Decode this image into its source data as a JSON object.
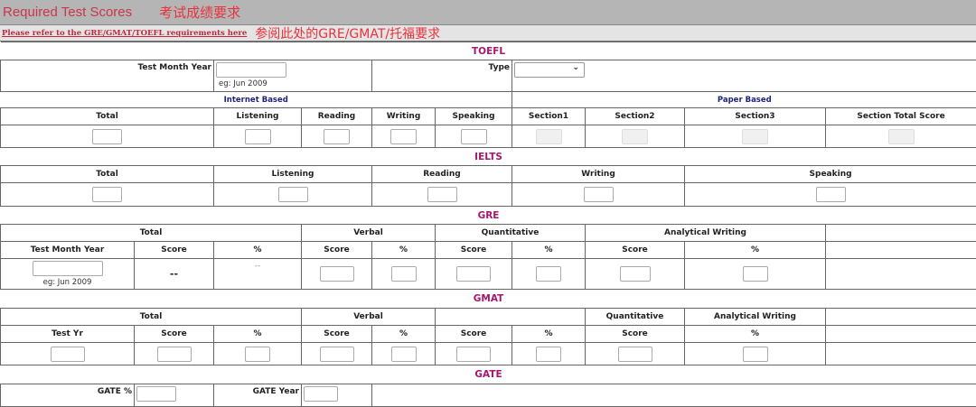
{
  "header": {
    "title": "Required Test Scores",
    "title_cn": "考试成绩要求"
  },
  "link": {
    "text": "Please refer to the GRE/GMAT/TOEFL requirements here",
    "note_cn": "参阅此处的GRE/GMAT/托福要求"
  },
  "toefl": {
    "title": "TOEFL",
    "test_month_year": "Test Month Year",
    "eg": "eg: Jun 2009",
    "type_label": "Type",
    "type_value": "",
    "chevron_icon": "chevron-down-icon",
    "internet_based": "Internet Based",
    "paper_based": "Paper Based",
    "columns": [
      "Total",
      "Listening",
      "Reading",
      "Writing",
      "Speaking",
      "Section1",
      "Section2",
      "Section3",
      "Section Total Score"
    ]
  },
  "ielts": {
    "title": "IELTS",
    "columns": [
      "Total",
      "Listening",
      "Reading",
      "Writing",
      "Speaking"
    ]
  },
  "gre": {
    "title": "GRE",
    "groups": [
      "Total",
      "Verbal",
      "Quantitative",
      "Analytical Writing"
    ],
    "columns": [
      "Test Month Year",
      "Score",
      "%",
      "Score",
      "%",
      "Score",
      "%",
      "Score",
      "%"
    ],
    "eg": "eg: Jun 2009",
    "total_score": "--",
    "total_pct": "--"
  },
  "gmat": {
    "title": "GMAT",
    "groups": [
      "Total",
      "Verbal",
      "Quantitative",
      "Analytical Writing"
    ],
    "columns": [
      "Test Yr",
      "Score",
      "%",
      "Score",
      "%",
      "Score",
      "%",
      "Score",
      "%"
    ]
  },
  "gate": {
    "title": "GATE",
    "pct_label": "GATE %",
    "year_label": "GATE Year"
  },
  "colors": {
    "section_title": "#a4176f",
    "sub_title": "#1d237a",
    "header_bg": "#b5b5b5",
    "title_red": "#c8364c"
  }
}
